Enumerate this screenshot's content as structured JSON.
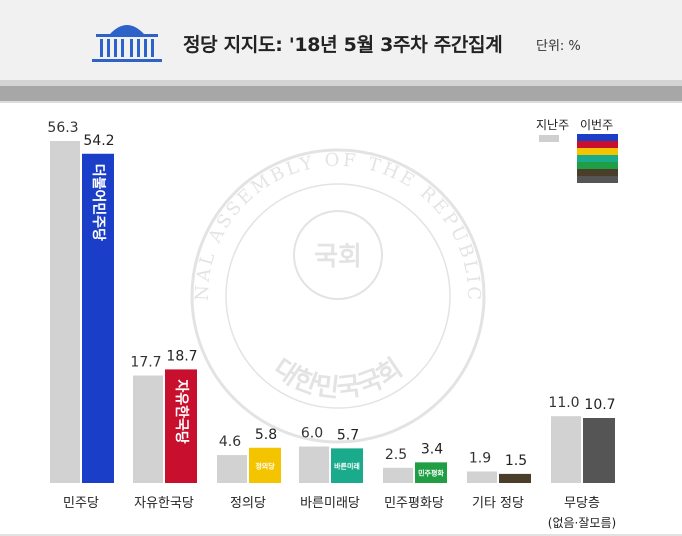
{
  "header": {
    "title": "정당 지지도: '18년 5월 3주차 주간집계",
    "unit": "단위: %"
  },
  "watermark": {
    "ring_text": "THE NATIONAL ASSEMBLY OF THE REPUBLIC OF KOREA",
    "center_text": "국회",
    "bottom_text": "대한민국국회"
  },
  "legend": {
    "previous_label": "지난주",
    "current_label": "이번주",
    "current_swatch_colors": [
      "#1a3ec8",
      "#c8102e",
      "#f5c400",
      "#1aaa8c",
      "#1f9e43",
      "#4a3d2a",
      "#555555"
    ]
  },
  "chart_data": {
    "type": "bar",
    "categories": [
      {
        "label": "민주당",
        "sublabel": ""
      },
      {
        "label": "자유한국당",
        "sublabel": ""
      },
      {
        "label": "정의당",
        "sublabel": ""
      },
      {
        "label": "바른미래당",
        "sublabel": ""
      },
      {
        "label": "민주평화당",
        "sublabel": ""
      },
      {
        "label": "기타 정당",
        "sublabel": ""
      },
      {
        "label": "무당층",
        "sublabel": "(없음·잘모름)"
      }
    ],
    "series": [
      {
        "name": "지난주",
        "values": [
          56.3,
          17.7,
          4.6,
          6.0,
          2.5,
          1.9,
          11.0
        ],
        "value_labels": [
          "56.3",
          "17.7",
          "4.6",
          "6.0",
          "2.5",
          "1.9",
          "11.0"
        ]
      },
      {
        "name": "이번주",
        "values": [
          54.2,
          18.7,
          5.8,
          5.7,
          3.4,
          1.5,
          10.7
        ],
        "value_labels": [
          "54.2",
          "18.7",
          "5.8",
          "5.7",
          "3.4",
          "1.5",
          "10.7"
        ]
      }
    ],
    "current_colors": [
      "#1a3ec8",
      "#c8102e",
      "#f5c400",
      "#1aaa8c",
      "#1f9e43",
      "#4a3d2a",
      "#555555"
    ],
    "previous_color": "#d2d2d2",
    "party_logos": [
      "더불어민주당",
      "자유한국당",
      "정의당",
      "바른미래당",
      "민주평화당",
      "",
      ""
    ],
    "ylim": [
      0,
      56.3
    ],
    "grid": false,
    "legend_position": "top-right"
  }
}
